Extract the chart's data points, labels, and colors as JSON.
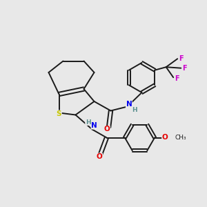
{
  "background_color": "#e8e8e8",
  "bond_color": "#1a1a1a",
  "atom_colors": {
    "O": "#e60000",
    "N": "#0000ee",
    "S": "#c8c800",
    "F": "#cc00cc",
    "H": "#5a9090",
    "C": "#1a1a1a"
  },
  "figsize": [
    3.0,
    3.0
  ],
  "dpi": 100,
  "xlim": [
    0,
    10
  ],
  "ylim": [
    0,
    10
  ]
}
